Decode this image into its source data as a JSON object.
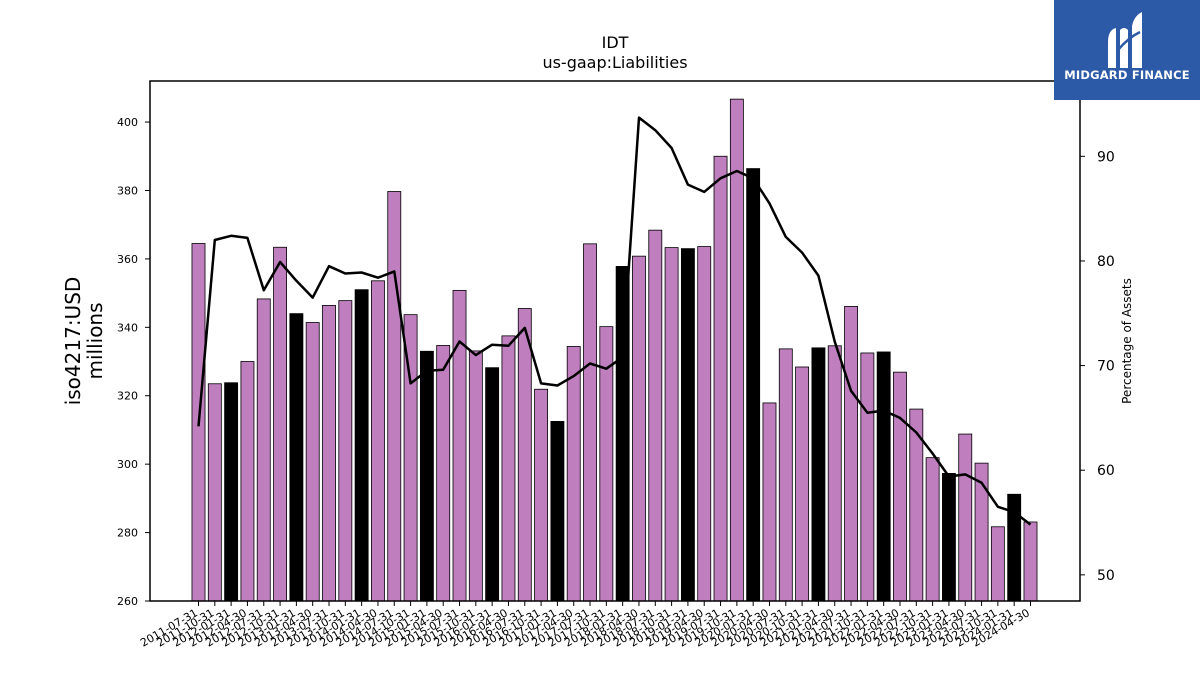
{
  "logo": {
    "brand": "MIDGARD FINANCE"
  },
  "chart_data": {
    "type": "bar",
    "title": "IDT",
    "subtitle": "us-gaap:Liabilities",
    "ylabel": "iso4217:USD\nmillions",
    "y2label": "Percentage of Assets",
    "ylim": [
      260,
      412
    ],
    "y2lim": [
      47.5,
      97.2
    ],
    "yticks": [
      260,
      280,
      300,
      320,
      340,
      360,
      380,
      400
    ],
    "y2ticks": [
      50,
      60,
      70,
      80,
      90
    ],
    "colors": {
      "bar": "#bf7fbf",
      "highlight": "#000000",
      "line": "#000000"
    },
    "categories": [
      "2011-07-31",
      "2011-10-31",
      "2012-01-31",
      "2012-04-30",
      "2012-07-31",
      "2012-10-31",
      "2013-01-31",
      "2013-04-30",
      "2013-07-31",
      "2013-10-31",
      "2014-01-31",
      "2014-04-30",
      "2014-07-31",
      "2014-10-31",
      "2015-01-31",
      "2015-04-30",
      "2015-07-31",
      "2015-10-31",
      "2016-01-31",
      "2016-04-30",
      "2016-07-31",
      "2016-10-31",
      "2017-01-31",
      "2017-04-30",
      "2017-07-31",
      "2017-10-31",
      "2018-01-31",
      "2018-04-30",
      "2018-07-31",
      "2018-10-31",
      "2019-01-31",
      "2019-04-30",
      "2019-07-31",
      "2019-10-31",
      "2020-01-31",
      "2020-04-30",
      "2020-07-31",
      "2020-10-31",
      "2021-01-31",
      "2021-04-30",
      "2021-07-31",
      "2021-10-31",
      "2022-01-31",
      "2022-04-30",
      "2022-07-31",
      "2022-10-31",
      "2023-01-31",
      "2023-04-30",
      "2023-07-31",
      "2023-10-31",
      "2024-01-31",
      "2024-04-30"
    ],
    "series": [
      {
        "values": [
          364.5,
          323.5,
          323.8,
          330.0,
          348.3,
          363.4,
          344.0,
          341.4,
          346.4,
          347.8,
          351.0,
          353.6,
          379.7,
          343.7,
          333.0,
          334.7,
          350.8,
          333.1,
          328.2,
          337.5,
          345.5,
          321.9,
          312.5,
          334.4,
          364.4,
          340.2,
          357.8,
          360.8,
          368.4,
          363.3,
          363.0,
          363.6,
          390.0,
          406.7,
          386.4,
          317.9,
          333.7,
          328.4,
          334.0,
          334.6,
          346.1,
          332.5,
          332.8,
          326.9,
          316.1,
          301.9,
          297.3,
          308.8,
          300.3,
          281.7,
          291.2,
          283.1
        ],
        "highlight": [
          false,
          false,
          true,
          false,
          false,
          false,
          true,
          false,
          false,
          false,
          true,
          false,
          false,
          false,
          true,
          false,
          false,
          false,
          true,
          false,
          false,
          false,
          true,
          false,
          false,
          false,
          true,
          false,
          false,
          false,
          true,
          false,
          false,
          false,
          true,
          false,
          false,
          false,
          true,
          false,
          false,
          false,
          true,
          false,
          false,
          false,
          true,
          false,
          false,
          false,
          true,
          false
        ]
      },
      {
        "axis": "y2",
        "values": [
          64.2,
          82.0,
          82.4,
          82.2,
          77.2,
          79.9,
          78.1,
          76.5,
          79.5,
          78.8,
          78.9,
          78.4,
          79.0,
          68.3,
          69.5,
          69.6,
          72.3,
          71.0,
          72.0,
          71.9,
          73.6,
          68.3,
          68.1,
          69.0,
          70.2,
          69.7,
          70.8,
          93.7,
          92.5,
          90.8,
          87.3,
          86.6,
          87.9,
          88.6,
          87.9,
          85.5,
          82.3,
          80.8,
          78.6,
          72.3,
          67.6,
          65.5,
          65.7,
          65.0,
          63.6,
          61.6,
          59.4,
          59.6,
          58.8,
          56.5,
          56.0,
          54.8
        ]
      }
    ]
  }
}
